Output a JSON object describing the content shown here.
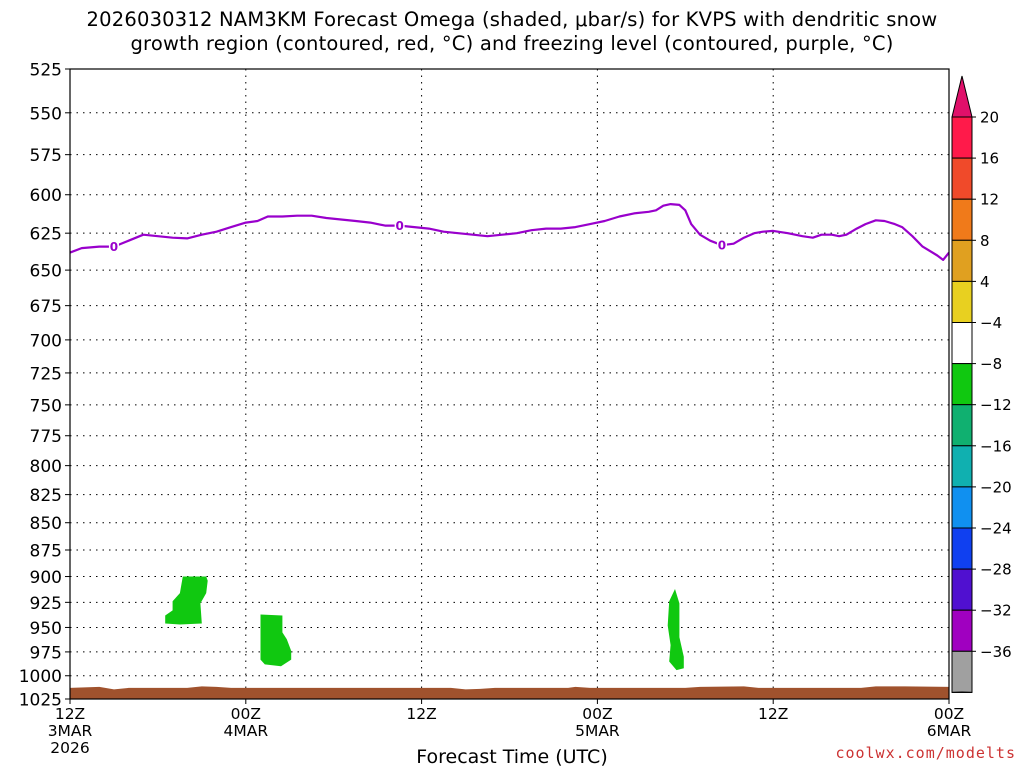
{
  "title": {
    "line1": "2026030312 NAM3KM Forecast Omega (shaded, μbar/s) for KVPS with dendritic snow",
    "line2": "growth region (contoured, red, °C) and freezing level (contoured, purple, °C)"
  },
  "credit": "coolwx.com/modelts",
  "chart_data": {
    "type": "heatmap",
    "xlabel": "Forecast Time (UTC)",
    "x_unit": "forecast hours from 2026030312",
    "xlim": [
      0,
      60
    ],
    "x_ticks": [
      {
        "hour": 0,
        "lines": [
          "12Z",
          "3MAR",
          "2026"
        ]
      },
      {
        "hour": 12,
        "lines": [
          "00Z",
          "4MAR"
        ]
      },
      {
        "hour": 24,
        "lines": [
          "12Z"
        ]
      },
      {
        "hour": 36,
        "lines": [
          "00Z",
          "5MAR"
        ]
      },
      {
        "hour": 48,
        "lines": [
          "12Z"
        ]
      },
      {
        "hour": 60,
        "lines": [
          "00Z",
          "6MAR"
        ]
      }
    ],
    "ylabel": "",
    "y_unit": "hPa",
    "ylim": [
      525,
      1025
    ],
    "y_scale": "log-pressure (inverted)",
    "y_ticks": [
      525,
      550,
      575,
      600,
      625,
      650,
      675,
      700,
      725,
      750,
      775,
      800,
      825,
      850,
      875,
      900,
      925,
      950,
      975,
      1000,
      1025
    ],
    "grid": true,
    "colorbar": {
      "position": "right",
      "levels": [
        "20",
        "16",
        "12",
        "8",
        "4",
        "−4",
        "−8",
        "−12",
        "−16",
        "−20",
        "−24",
        "−28",
        "−32",
        "−36"
      ],
      "colors": [
        "#ff1a4a",
        "#f04a2a",
        "#f07a1a",
        "#e0a020",
        "#e8d020",
        "#ffffff",
        "#10c810",
        "#10b070",
        "#10b0b0",
        "#1090f0",
        "#1040f0",
        "#5010d0",
        "#a000c0",
        "#a0a0a0"
      ],
      "top_arrow_color": "#e0106a",
      "bottom_arrow_color": "#000000"
    },
    "freezing_level": {
      "color": "#9900cc",
      "contour_label": "0",
      "label_hours": [
        3,
        22.5,
        44.5
      ],
      "points": [
        [
          0,
          638
        ],
        [
          0.8,
          635
        ],
        [
          2,
          634
        ],
        [
          3,
          634
        ],
        [
          4,
          630
        ],
        [
          5,
          626
        ],
        [
          6,
          627
        ],
        [
          7,
          628
        ],
        [
          8,
          628.5
        ],
        [
          9,
          626
        ],
        [
          10,
          624
        ],
        [
          11,
          621
        ],
        [
          12,
          618
        ],
        [
          12.8,
          617
        ],
        [
          13.5,
          614
        ],
        [
          14.5,
          614
        ],
        [
          15.5,
          613.5
        ],
        [
          16.5,
          613.5
        ],
        [
          17.5,
          615
        ],
        [
          18.5,
          616
        ],
        [
          19.5,
          617
        ],
        [
          20.5,
          618
        ],
        [
          21.5,
          620
        ],
        [
          22.5,
          620
        ],
        [
          23.5,
          621
        ],
        [
          24.5,
          622
        ],
        [
          25.5,
          624
        ],
        [
          26.5,
          625
        ],
        [
          27.5,
          626
        ],
        [
          28.5,
          627
        ],
        [
          29.5,
          626
        ],
        [
          30.5,
          625
        ],
        [
          31.5,
          623
        ],
        [
          32.5,
          622
        ],
        [
          33.5,
          622
        ],
        [
          34.5,
          621
        ],
        [
          35.5,
          619
        ],
        [
          36.5,
          617
        ],
        [
          37.5,
          614
        ],
        [
          38.5,
          612
        ],
        [
          39.5,
          611
        ],
        [
          40,
          610
        ],
        [
          40.5,
          607
        ],
        [
          41,
          606
        ],
        [
          41.6,
          606.5
        ],
        [
          42,
          610
        ],
        [
          42.4,
          619
        ],
        [
          43,
          626
        ],
        [
          43.7,
          630
        ],
        [
          44.5,
          633
        ],
        [
          45.3,
          632
        ],
        [
          46,
          628
        ],
        [
          46.7,
          625
        ],
        [
          47.3,
          624
        ],
        [
          48,
          623.5
        ],
        [
          49,
          625
        ],
        [
          50,
          627
        ],
        [
          50.7,
          628
        ],
        [
          51.3,
          626
        ],
        [
          52,
          626
        ],
        [
          52.5,
          627
        ],
        [
          53,
          626
        ],
        [
          53.7,
          622
        ],
        [
          54.3,
          619
        ],
        [
          55,
          616.5
        ],
        [
          55.6,
          617
        ],
        [
          56.3,
          619
        ],
        [
          56.8,
          621
        ],
        [
          57.5,
          627
        ],
        [
          58.2,
          634
        ],
        [
          59.2,
          640
        ],
        [
          59.6,
          643
        ],
        [
          60,
          638
        ]
      ]
    },
    "omega_regions": [
      {
        "value_range": "−8 to −4",
        "color": "#10c810",
        "points": [
          [
            6.5,
            946
          ],
          [
            6.5,
            938
          ],
          [
            7,
            933
          ],
          [
            7,
            924
          ],
          [
            7.5,
            916
          ],
          [
            7.7,
            900
          ],
          [
            9.3,
            900
          ],
          [
            9.4,
            904
          ],
          [
            9.3,
            916
          ],
          [
            8.9,
            926
          ],
          [
            9,
            946
          ],
          [
            7.5,
            947
          ]
        ]
      },
      {
        "value_range": "−8 to −4",
        "color": "#10c810",
        "points": [
          [
            13,
            937
          ],
          [
            14.5,
            938
          ],
          [
            14.5,
            955
          ],
          [
            14.8,
            962
          ],
          [
            15.1,
            974
          ],
          [
            15.1,
            983
          ],
          [
            14.4,
            990
          ],
          [
            13.3,
            988
          ],
          [
            13,
            983
          ],
          [
            13,
            965
          ]
        ]
      },
      {
        "value_range": "−8 to −4",
        "color": "#10c810",
        "points": [
          [
            41.3,
            912
          ],
          [
            41.6,
            926
          ],
          [
            41.6,
            944
          ],
          [
            41.6,
            960
          ],
          [
            41.9,
            980
          ],
          [
            41.9,
            992
          ],
          [
            41.4,
            994
          ],
          [
            40.9,
            985
          ],
          [
            41,
            968
          ],
          [
            40.8,
            948
          ],
          [
            40.9,
            924
          ]
        ]
      }
    ],
    "terrain": {
      "color": "#a0522d",
      "surface_hPa": 1013
    }
  }
}
